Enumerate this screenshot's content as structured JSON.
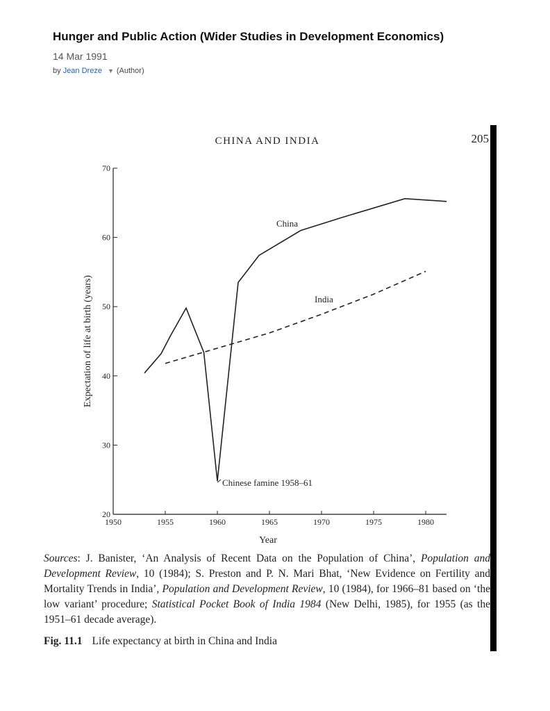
{
  "header": {
    "title": "Hunger and Public Action (Wider Studies in Development Economics)",
    "date": "14 Mar 1991",
    "by": "by",
    "author": "Jean Dreze",
    "role": "(Author)"
  },
  "page": {
    "running_head": "CHINA AND INDIA",
    "number": "205"
  },
  "chart_data": {
    "type": "line",
    "xlabel": "Year",
    "ylabel": "Expectation of life at birth (years)",
    "xlim": [
      1950,
      1982
    ],
    "ylim": [
      20,
      70
    ],
    "xticks": [
      1950,
      1955,
      1960,
      1965,
      1970,
      1975,
      1980
    ],
    "yticks": [
      20,
      30,
      40,
      50,
      60,
      70
    ],
    "series": [
      {
        "name": "China",
        "color": "#222222",
        "style": "solid",
        "x": [
          1953,
          1954.6,
          1955.5,
          1957,
          1958.7,
          1960,
          1962,
          1964,
          1968,
          1972,
          1978,
          1982
        ],
        "values": [
          40.4,
          43.2,
          45.8,
          49.8,
          43.4,
          24.8,
          53.5,
          57.4,
          61,
          62.9,
          65.6,
          65.2
        ]
      },
      {
        "name": "India",
        "color": "#222222",
        "style": "dashed",
        "x": [
          1955,
          1960,
          1965,
          1970,
          1975,
          1980
        ],
        "values": [
          41.8,
          44,
          46.2,
          48.9,
          51.8,
          55.1
        ]
      }
    ],
    "annotations": [
      "Chinese famine 1958–61"
    ]
  },
  "sources": [
    {
      "text": "Sources",
      "italic": true
    },
    {
      "text": ": J. Banister, ‘An Analysis of Recent Data on the Population of China’, ",
      "italic": false
    },
    {
      "text": "Population and Development Review",
      "italic": true
    },
    {
      "text": ", 10 (1984); S. Preston and P. N. Mari Bhat, ‘New Evidence on Fertility and Mortality Trends in India’, ",
      "italic": false
    },
    {
      "text": "Population and Development Review",
      "italic": true
    },
    {
      "text": ", 10 (1984), for 1966–81 based on ‘the low variant’ procedure; ",
      "italic": false
    },
    {
      "text": "Statistical Pocket Book of India 1984",
      "italic": true
    },
    {
      "text": " (New Delhi, 1985), for 1955 (as the 1951–61 decade average).",
      "italic": false
    }
  ],
  "caption": {
    "label": "Fig. 11.1",
    "text": "Life expectancy at birth in China and India"
  }
}
